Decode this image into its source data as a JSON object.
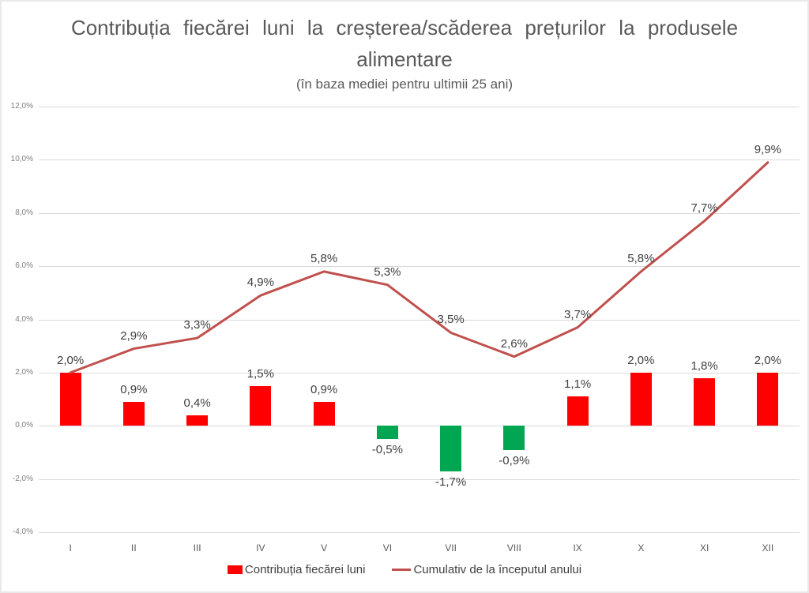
{
  "chart_data": {
    "type": "combo-bar-line",
    "title": "Contribuția fiecărei luni la creșterea/scăderea prețurilor la produsele alimentare",
    "subtitle": "(în baza mediei pentru ultimii 25 ani)",
    "categories": [
      "I",
      "II",
      "III",
      "IV",
      "V",
      "VI",
      "VII",
      "VIII",
      "IX",
      "X",
      "XI",
      "XII"
    ],
    "series": [
      {
        "name": "Contribuția fiecărei luni",
        "type": "bar",
        "values": [
          2.0,
          0.9,
          0.4,
          1.5,
          0.9,
          -0.5,
          -1.7,
          -0.9,
          1.1,
          2.0,
          1.8,
          2.0
        ],
        "labels": [
          "2,0%",
          "0,9%",
          "0,4%",
          "1,5%",
          "0,9%",
          "-0,5%",
          "-1,7%",
          "-0,9%",
          "1,1%",
          "2,0%",
          "1,8%",
          "2,0%"
        ],
        "color_positive": "#FF0000",
        "color_negative": "#00A651"
      },
      {
        "name": "Cumulativ de la începutul anului",
        "type": "line",
        "values": [
          2.0,
          2.9,
          3.3,
          4.9,
          5.8,
          5.3,
          3.5,
          2.6,
          3.7,
          5.8,
          7.7,
          9.9
        ],
        "labels": [
          "2,0%",
          "2,9%",
          "3,3%",
          "4,9%",
          "5,8%",
          "5,3%",
          "3,5%",
          "2,6%",
          "3,7%",
          "5,8%",
          "7,7%",
          "9,9%"
        ],
        "color": "#C0504D"
      }
    ],
    "y_axis": {
      "min": -4,
      "max": 12,
      "step": 2,
      "tick_labels": [
        "12,0%",
        "10,0%",
        "8,0%",
        "6,0%",
        "4,0%",
        "2,0%",
        "0,0%",
        "-2,0%",
        "-4,0%"
      ]
    },
    "x_axis": {
      "labels": [
        "I",
        "II",
        "III",
        "IV",
        "V",
        "VI",
        "VII",
        "VIII",
        "IX",
        "X",
        "XI",
        "XII"
      ]
    },
    "grid": true,
    "legend_position": "bottom",
    "colors": {
      "grid": "#D9D9D9",
      "title_text": "#595959",
      "axis_text": "#808080",
      "x_axis_text": "#595959",
      "data_label_text": "#404040"
    }
  }
}
